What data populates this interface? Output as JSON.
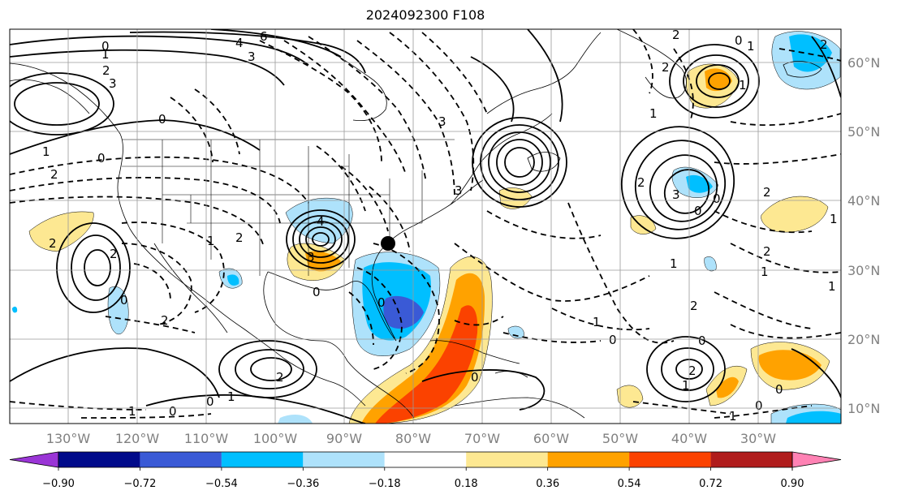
{
  "title": "2024092300 F108",
  "map": {
    "lon_ticks": [
      "130°W",
      "120°W",
      "110°W",
      "100°W",
      "90°W",
      "80°W",
      "70°W",
      "60°W",
      "50°W",
      "40°W",
      "30°W"
    ],
    "lat_ticks": [
      "60°N",
      "50°N",
      "40°N",
      "30°N",
      "20°N",
      "10°N"
    ],
    "grid": true,
    "marker": "black-dot",
    "contour_labels": [
      "0",
      "1",
      "2",
      "3",
      "4",
      "6"
    ]
  },
  "colorbar": {
    "labels": [
      "−0.90",
      "−0.72",
      "−0.54",
      "−0.36",
      "−0.18",
      "0.18",
      "0.36",
      "0.54",
      "0.72",
      "0.90"
    ],
    "colors": {
      "below": "#9a35d6",
      "bins": [
        "#000a8a",
        "#3a5ad6",
        "#00bfff",
        "#aee2fb",
        "#ffffff",
        "#fde892",
        "#ffa200",
        "#fb4200",
        "#b01c1c"
      ],
      "above": "#ff82b4"
    }
  },
  "fill_colors": {
    "light_yellow": "#fde892",
    "orange": "#ffa200",
    "red_orange": "#fb4200",
    "light_blue": "#aee2fb",
    "sky_blue": "#00bfff",
    "medium_blue": "#3a5ad6"
  }
}
